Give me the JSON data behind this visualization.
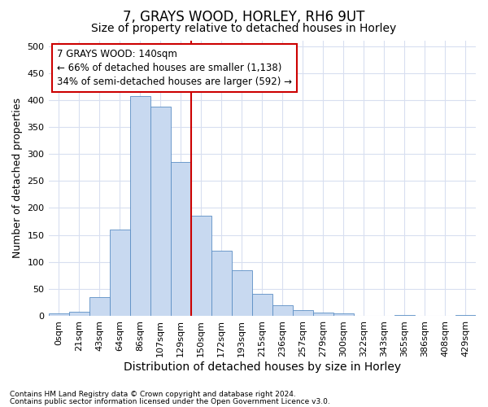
{
  "title": "7, GRAYS WOOD, HORLEY, RH6 9UT",
  "subtitle": "Size of property relative to detached houses in Horley",
  "xlabel": "Distribution of detached houses by size in Horley",
  "ylabel": "Number of detached properties",
  "footnote1": "Contains HM Land Registry data © Crown copyright and database right 2024.",
  "footnote2": "Contains public sector information licensed under the Open Government Licence v3.0.",
  "bar_labels": [
    "0sqm",
    "21sqm",
    "43sqm",
    "64sqm",
    "86sqm",
    "107sqm",
    "129sqm",
    "150sqm",
    "172sqm",
    "193sqm",
    "215sqm",
    "236sqm",
    "257sqm",
    "279sqm",
    "300sqm",
    "322sqm",
    "343sqm",
    "365sqm",
    "386sqm",
    "408sqm",
    "429sqm"
  ],
  "bar_values": [
    5,
    7,
    35,
    160,
    407,
    388,
    285,
    185,
    120,
    85,
    40,
    19,
    11,
    6,
    5,
    0,
    0,
    2,
    0,
    0,
    2
  ],
  "bar_color": "#c8d9f0",
  "bar_edgecolor": "#5b8ec4",
  "vline_color": "#cc0000",
  "annotation_text": "7 GRAYS WOOD: 140sqm\n← 66% of detached houses are smaller (1,138)\n34% of semi-detached houses are larger (592) →",
  "annotation_box_color": "white",
  "annotation_box_edgecolor": "#cc0000",
  "ylim": [
    0,
    510
  ],
  "yticks": [
    0,
    50,
    100,
    150,
    200,
    250,
    300,
    350,
    400,
    450,
    500
  ],
  "background_color": "#ffffff",
  "grid_color": "#d8dff0",
  "title_fontsize": 12,
  "subtitle_fontsize": 10,
  "xlabel_fontsize": 10,
  "ylabel_fontsize": 9,
  "tick_fontsize": 8,
  "annotation_fontsize": 8.5,
  "footnote_fontsize": 6.5,
  "vline_index": 7
}
